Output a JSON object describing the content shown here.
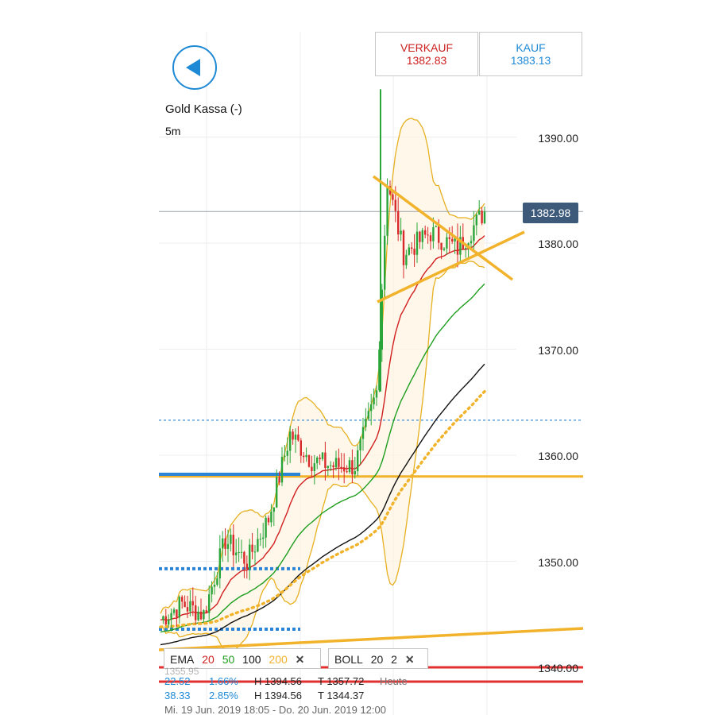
{
  "header": {
    "instrument": "Gold Kassa (-)",
    "interval": "5m",
    "sell_label": "VERKAUF",
    "sell_price": "1382.83",
    "buy_label": "KAUF",
    "buy_price": "1383.13"
  },
  "y_axis": {
    "ticks": [
      "1390.00",
      "1380.00",
      "1370.00",
      "1360.00",
      "1350.00",
      "1340.00"
    ],
    "current_price": "1382.98"
  },
  "indicators": {
    "ema_label": "EMA",
    "ema_periods": [
      "20",
      "50",
      "100",
      "200"
    ],
    "ema_colors": [
      "#d11f1f",
      "#1f9e1f",
      "#111111",
      "#f2b32c"
    ],
    "boll_label": "BOLL",
    "boll_params": [
      "20",
      "2"
    ],
    "close_icon": "close-icon"
  },
  "stats": {
    "row1": {
      "change": "22.52",
      "percent": "1.66%",
      "high": "H 1394.56",
      "low": "T 1357.72",
      "period": "Heute"
    },
    "row2": {
      "change": "38.33",
      "percent": "2.85%",
      "high": "H 1394.56",
      "low": "T 1344.37"
    },
    "partial_hidden": "1355.95",
    "date_range": "Mi. 19 Jun. 2019 18:05 - Do. 20 Jun. 2019 12:00"
  },
  "chart_data": {
    "type": "candlestick",
    "title": "Gold Kassa (-)",
    "interval": "5m",
    "y_ticks": [
      1340,
      1350,
      1360,
      1370,
      1380,
      1390
    ],
    "ylim": [
      1337,
      1396
    ],
    "current_price": 1382.98,
    "price_path": [
      {
        "t": 0,
        "close": 1344.5
      },
      {
        "t": 8,
        "close": 1346.0
      },
      {
        "t": 16,
        "close": 1345.0
      },
      {
        "t": 24,
        "close": 1352.0
      },
      {
        "t": 32,
        "close": 1350.0
      },
      {
        "t": 40,
        "close": 1354.0
      },
      {
        "t": 48,
        "close": 1362.0
      },
      {
        "t": 56,
        "close": 1359.5
      },
      {
        "t": 64,
        "close": 1359.0
      },
      {
        "t": 72,
        "close": 1359.0
      },
      {
        "t": 80,
        "close": 1366.0
      },
      {
        "t": 84,
        "close": 1386.0
      },
      {
        "t": 90,
        "close": 1379.0
      },
      {
        "t": 100,
        "close": 1381.0
      },
      {
        "t": 110,
        "close": 1379.5
      },
      {
        "t": 120,
        "close": 1383.0
      }
    ],
    "series": [
      {
        "name": "EMA 20",
        "color": "#d11f1f"
      },
      {
        "name": "EMA 50",
        "color": "#1f9e1f"
      },
      {
        "name": "EMA 100",
        "color": "#111111"
      },
      {
        "name": "EMA 200",
        "color": "#f2b32c"
      },
      {
        "name": "BOLL 20 2",
        "color": "#e7b021"
      }
    ],
    "horizontal_levels": [
      {
        "value": 1358.0,
        "color": "#f2b32c",
        "style": "solid"
      },
      {
        "value": 1363.3,
        "color": "#2c84d6",
        "style": "dashed"
      },
      {
        "value": 1340.0,
        "color": "#e23030",
        "style": "solid"
      },
      {
        "value": 1382.98,
        "color": "#9aa0a6",
        "style": "solid"
      }
    ]
  }
}
